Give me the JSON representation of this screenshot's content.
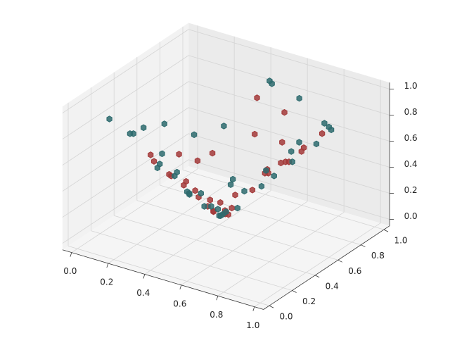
{
  "chart_data": {
    "type": "scatter3d",
    "xlim": [
      0,
      1
    ],
    "ylim": [
      0,
      1
    ],
    "zlim": [
      0,
      1
    ],
    "xticks": [
      {
        "value": 0,
        "label": "0.0"
      },
      0.2,
      0.4,
      0.6,
      0.8,
      {
        "value": 1,
        "label": "1.0"
      }
    ],
    "yticks": [
      {
        "value": 0,
        "label": "0.0"
      },
      0.2,
      0.4,
      0.6,
      0.8,
      {
        "value": 1,
        "label": "1.0"
      }
    ],
    "zticks": [
      {
        "value": 0,
        "label": "0.0"
      },
      0.2,
      0.4,
      0.6,
      0.8,
      {
        "value": 1,
        "label": "1.0"
      }
    ],
    "grid": true,
    "series": [
      {
        "color": "#a33a3a",
        "x": [
          0.2,
          0.25,
          0.3,
          0.35,
          0.4,
          0.45,
          0.4,
          0.5,
          0.55,
          0.6,
          0.65,
          0.7,
          0.75,
          0.8,
          0.85,
          0.9,
          0.5,
          0.45,
          0.6,
          0.3,
          0.15,
          0.2,
          0.25,
          0.35,
          0.5,
          0.55,
          0.65,
          0.7,
          0.4,
          0.3,
          0.22,
          0.18,
          0.42,
          0.38,
          0.8
        ],
        "y": [
          0.5,
          0.55,
          0.45,
          0.6,
          0.55,
          0.6,
          0.65,
          0.55,
          0.65,
          0.7,
          0.6,
          0.7,
          0.65,
          0.7,
          0.6,
          0.7,
          0.75,
          0.85,
          0.85,
          0.7,
          0.4,
          0.35,
          0.65,
          0.5,
          0.45,
          0.5,
          0.75,
          0.55,
          0.5,
          0.55,
          0.45,
          0.6,
          0.62,
          0.58,
          0.5
        ],
        "z": [
          0.3,
          0.25,
          0.3,
          0.12,
          0.08,
          0.05,
          0.03,
          0.15,
          0.25,
          0.4,
          0.45,
          0.5,
          0.55,
          0.65,
          0.7,
          0.8,
          0.6,
          0.8,
          0.75,
          0.4,
          0.5,
          0.5,
          0.35,
          0.2,
          0.25,
          0.3,
          0.6,
          0.5,
          0.15,
          0.2,
          0.35,
          0.4,
          0.03,
          0.06,
          0.65
        ]
      },
      {
        "color": "#2e6b6e",
        "x": [
          0.05,
          0.1,
          0.15,
          0.2,
          0.25,
          0.3,
          0.35,
          0.4,
          0.45,
          0.5,
          0.6,
          0.7,
          0.8,
          0.9,
          1.0,
          0.95,
          0.55,
          0.5,
          0.3,
          0.2,
          0.1,
          0.15,
          0.25,
          0.35,
          0.45,
          0.6,
          0.7,
          0.85,
          0.65,
          0.4,
          0.3,
          0.2,
          0.5,
          0.38,
          0.42,
          0.75,
          0.9,
          0.08,
          0.6,
          0.33
        ],
        "y": [
          0.2,
          0.3,
          0.25,
          0.4,
          0.45,
          0.5,
          0.55,
          0.6,
          0.55,
          0.6,
          0.65,
          0.6,
          0.6,
          0.65,
          0.6,
          0.7,
          0.8,
          0.9,
          0.8,
          0.7,
          0.6,
          0.5,
          0.3,
          0.4,
          0.45,
          0.5,
          0.75,
          0.8,
          0.9,
          0.7,
          0.6,
          0.55,
          0.5,
          0.62,
          0.58,
          0.45,
          0.5,
          0.45,
          0.4,
          0.45
        ],
        "z": [
          0.85,
          0.7,
          0.75,
          0.45,
          0.35,
          0.2,
          0.1,
          0.02,
          0.08,
          0.12,
          0.3,
          0.45,
          0.6,
          0.75,
          0.95,
          0.85,
          1.0,
          0.9,
          0.55,
          0.5,
          0.6,
          0.45,
          0.5,
          0.3,
          0.2,
          0.35,
          0.55,
          0.8,
          0.85,
          0.2,
          0.15,
          0.3,
          0.15,
          0.05,
          0.04,
          0.6,
          0.85,
          0.65,
          0.5,
          0.25
        ]
      }
    ]
  }
}
